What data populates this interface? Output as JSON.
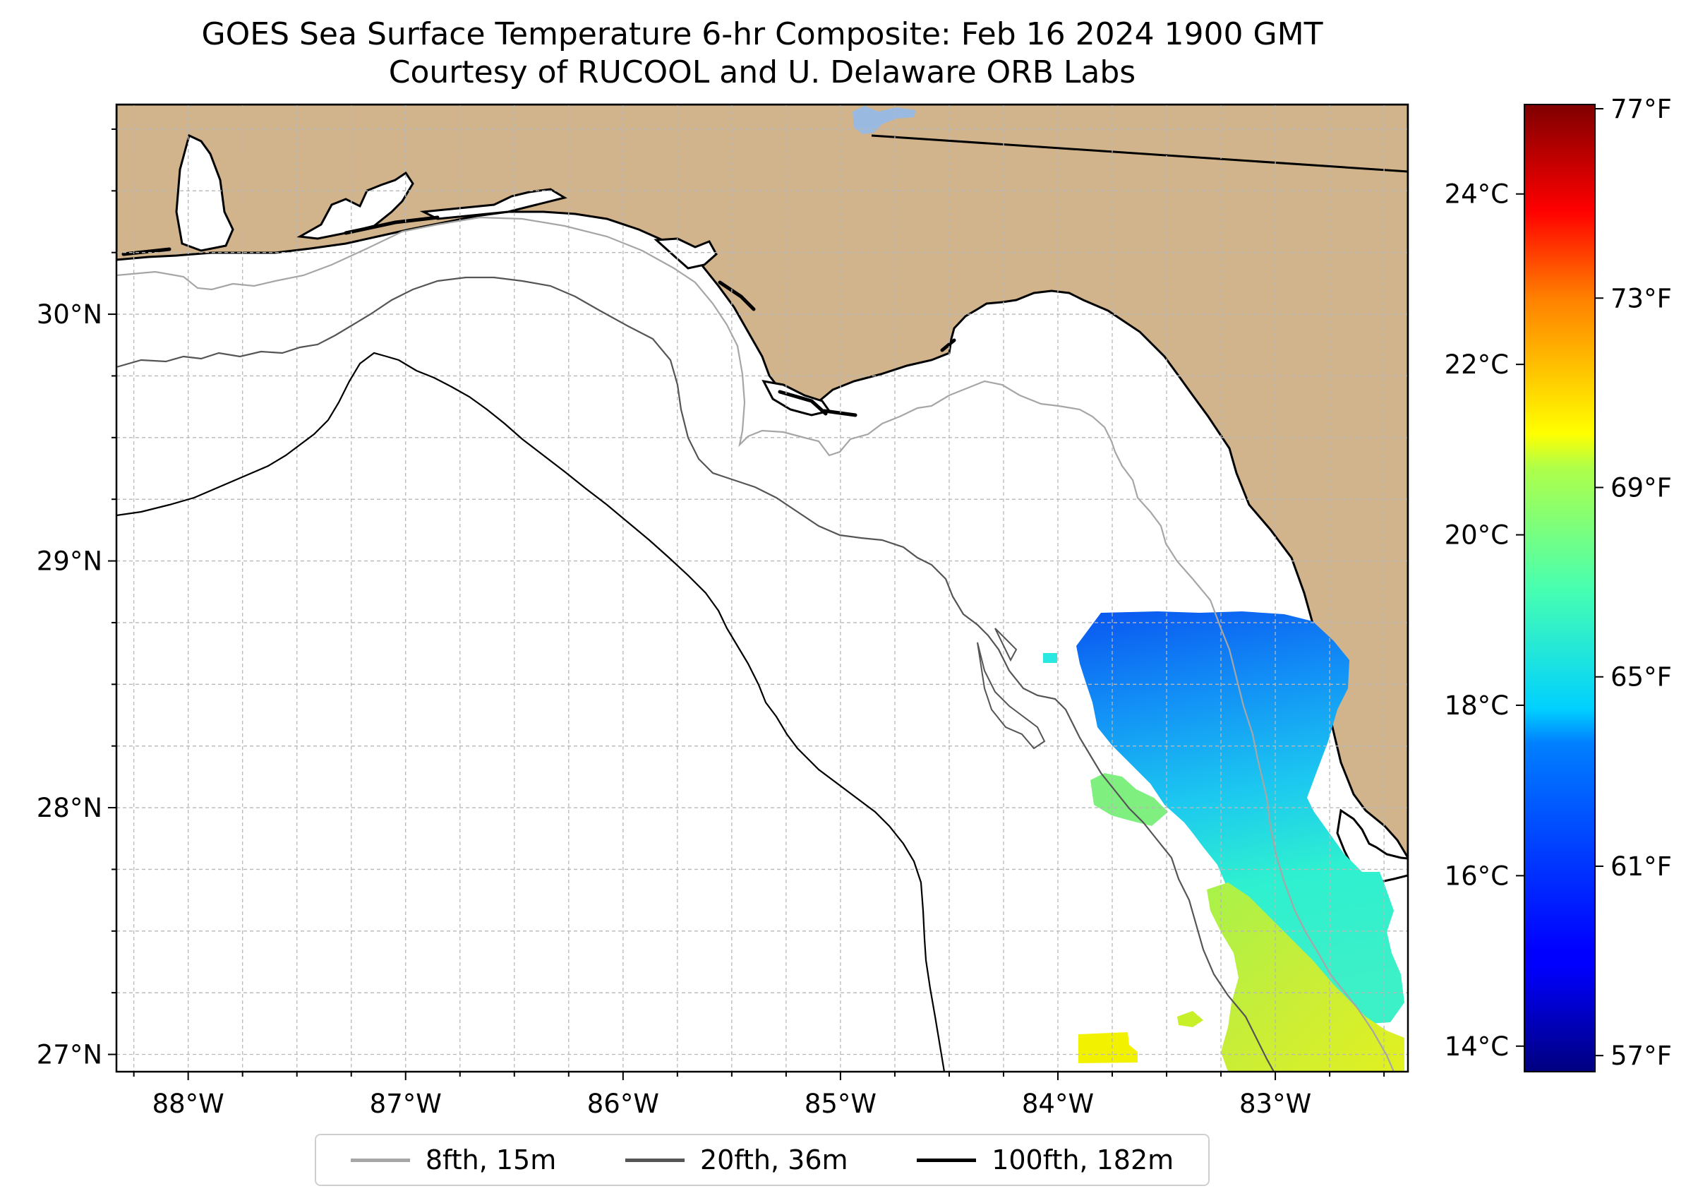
{
  "title": {
    "line1": "GOES Sea Surface Temperature 6-hr Composite: Feb 16 2024 1900 GMT",
    "line2": "Courtesy of RUCOOL and U. Delaware ORB Labs"
  },
  "map": {
    "lon_range": [
      -88.33,
      -82.39
    ],
    "lat_range": [
      26.93,
      30.85
    ],
    "lon_ticks": [
      {
        "value": -88,
        "label": "88°W"
      },
      {
        "value": -87,
        "label": "87°W"
      },
      {
        "value": -86,
        "label": "86°W"
      },
      {
        "value": -85,
        "label": "85°W"
      },
      {
        "value": -84,
        "label": "84°W"
      },
      {
        "value": -83,
        "label": "83°W"
      }
    ],
    "lat_ticks": [
      {
        "value": 30,
        "label": "30°N"
      },
      {
        "value": 29,
        "label": "29°N"
      },
      {
        "value": 28,
        "label": "28°N"
      },
      {
        "value": 27,
        "label": "27°N"
      }
    ],
    "gridlines": "dashed, every 0.25°",
    "colors": {
      "land": "#d2b48c",
      "water": "#ffffff",
      "lake": "#9ab9e0",
      "coast": "#000000"
    }
  },
  "legend": {
    "placement": "bottom-center",
    "items": [
      {
        "label": "8fth, 15m",
        "color": "#a6a6a6"
      },
      {
        "label": "20fth, 36m",
        "color": "#555555"
      },
      {
        "label": "100fth, 182m",
        "color": "#000000"
      }
    ]
  },
  "colorbar": {
    "colormap": "jet",
    "range_c": [
      13.7,
      25.05
    ],
    "celsius_ticks": [
      {
        "value": 14,
        "label": "14°C"
      },
      {
        "value": 16,
        "label": "16°C"
      },
      {
        "value": 18,
        "label": "18°C"
      },
      {
        "value": 20,
        "label": "20°C"
      },
      {
        "value": 22,
        "label": "22°C"
      },
      {
        "value": 24,
        "label": "24°C"
      }
    ],
    "fahrenheit_ticks": [
      {
        "value": 57,
        "label": "57°F"
      },
      {
        "value": 61,
        "label": "61°F"
      },
      {
        "value": 65,
        "label": "65°F"
      },
      {
        "value": 69,
        "label": "69°F"
      },
      {
        "value": 73,
        "label": "73°F"
      },
      {
        "value": 77,
        "label": "77°F"
      }
    ]
  }
}
